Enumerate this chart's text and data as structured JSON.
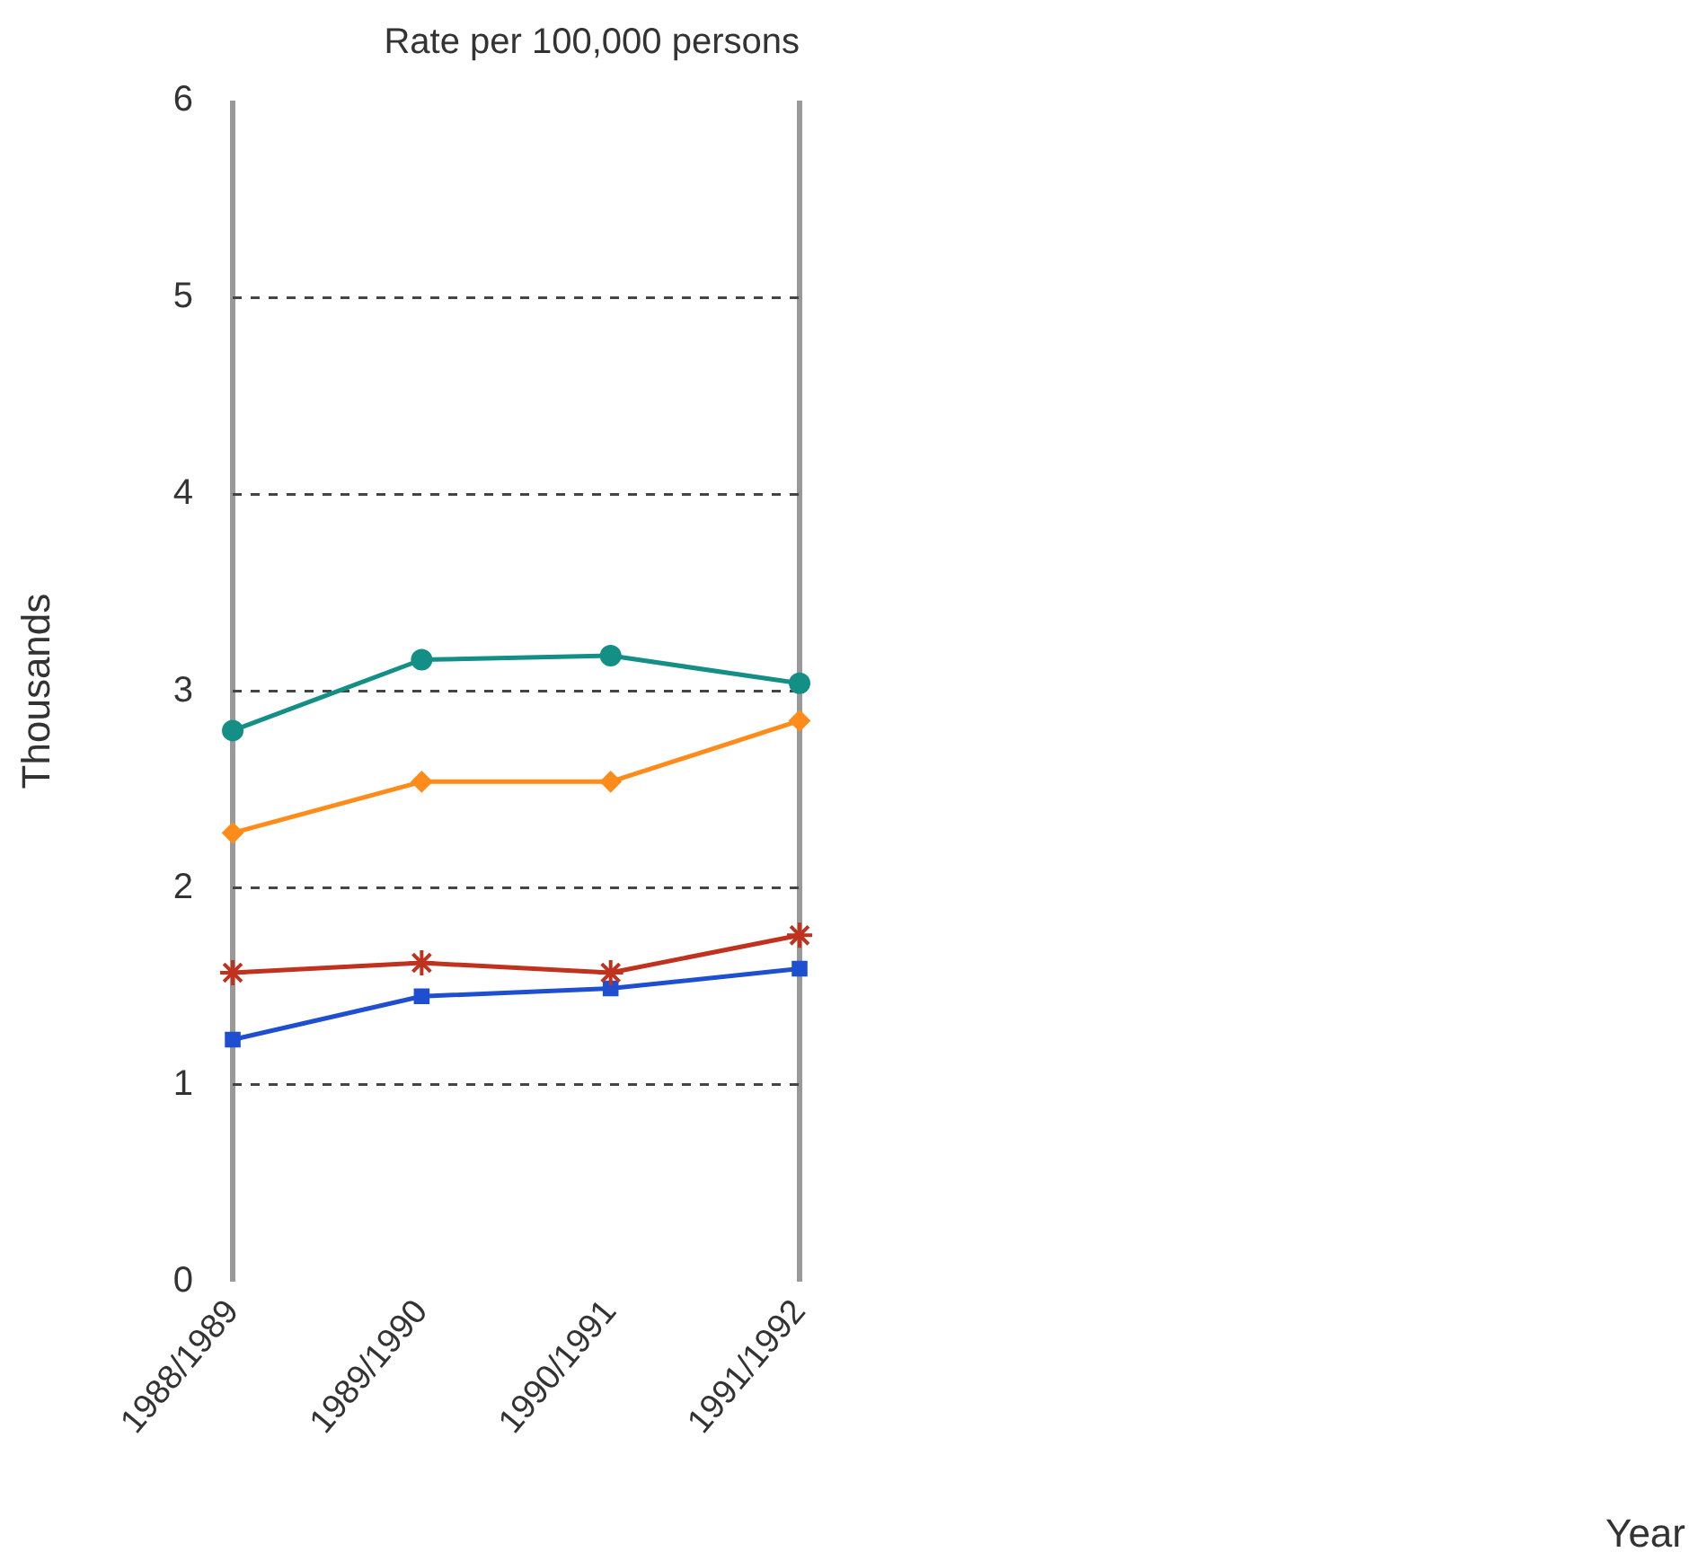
{
  "chart_data": {
    "type": "line",
    "title": "Rate per 100,000 persons",
    "annotations": [
      "Year"
    ],
    "ylabel": "Thousands",
    "categories": [
      "1988/1989",
      "1989/1990",
      "1990/1991",
      "1991/1992"
    ],
    "series": [
      {
        "color": "#148f86",
        "marker": "circle",
        "values": [
          2.8,
          3.16,
          3.18,
          3.04
        ]
      },
      {
        "color": "#ff8c1a",
        "marker": "diamond",
        "values": [
          2.28,
          2.54,
          2.54,
          2.85
        ]
      },
      {
        "color": "#c0321e",
        "marker": "cross",
        "values": [
          1.57,
          1.62,
          1.57,
          1.76
        ]
      },
      {
        "color": "#1f4fd1",
        "marker": "square",
        "values": [
          1.23,
          1.45,
          1.49,
          1.59
        ]
      }
    ],
    "ylim": [
      0,
      6
    ],
    "yticks": [
      0,
      1,
      2,
      3,
      4,
      5,
      6
    ],
    "grid": "y",
    "legend": false,
    "line_style": "solid"
  }
}
